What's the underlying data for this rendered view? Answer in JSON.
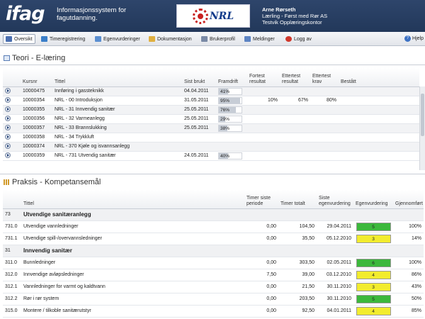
{
  "header": {
    "logo": "ifag",
    "tagline": "Informasjonssystem for fagutdanning.",
    "org_logo_text": "NRL",
    "user_name": "Arne Rørseth",
    "user_role": "Lærling - Først med Rør AS",
    "user_office": "Testvik Opplæringskontor"
  },
  "toolbar": {
    "tabs": [
      {
        "label": "Oversikt",
        "icon": "home-icon",
        "color": "#4a6fb0"
      },
      {
        "label": "Timeregistrering",
        "icon": "clock-icon",
        "color": "#3b7fc9"
      },
      {
        "label": "Egenvurderinger",
        "icon": "chart-icon",
        "color": "#5b8fd1"
      },
      {
        "label": "Dokumentasjon",
        "icon": "folder-icon",
        "color": "#e0b040"
      },
      {
        "label": "Brukerprofil",
        "icon": "profile-icon",
        "color": "#7a8aa6"
      },
      {
        "label": "Meldinger",
        "icon": "mail-icon",
        "color": "#5d84c4"
      },
      {
        "label": "Logg av",
        "icon": "logout-icon",
        "color": "#d0382c"
      }
    ],
    "help": "Hjelp"
  },
  "teori": {
    "title": "Teori - E-læring",
    "columns": [
      "Kursnr",
      "Tittel",
      "Sist brukt",
      "Framdrift",
      "Fortest resultat",
      "Ettertest resultat",
      "Ettertest krav",
      "Bestått"
    ],
    "rows": [
      {
        "kursnr": "10000475",
        "tittel": "Innføring i gassteknikk",
        "sist": "04.04.2011",
        "framdrift": "41%",
        "pct": 0.41,
        "fortest": "",
        "etter": "",
        "krav": "",
        "bestatt": ""
      },
      {
        "kursnr": "10000354",
        "tittel": "NRL - 00 Introduksjon",
        "sist": "31.05.2011",
        "framdrift": "95%",
        "pct": 0.95,
        "fortest": "10%",
        "etter": "67%",
        "krav": "80%",
        "bestatt": ""
      },
      {
        "kursnr": "10000355",
        "tittel": "NRL - 31 Innvendig sanitær",
        "sist": "25.05.2011",
        "framdrift": "76%",
        "pct": 0.76,
        "fortest": "",
        "etter": "",
        "krav": "",
        "bestatt": ""
      },
      {
        "kursnr": "10000356",
        "tittel": "NRL - 32 Varmeanlegg",
        "sist": "25.05.2011",
        "framdrift": "29%",
        "pct": 0.29,
        "fortest": "",
        "etter": "",
        "krav": "",
        "bestatt": ""
      },
      {
        "kursnr": "10000357",
        "tittel": "NRL - 33 Brannslukking",
        "sist": "25.05.2011",
        "framdrift": "38%",
        "pct": 0.38,
        "fortest": "",
        "etter": "",
        "krav": "",
        "bestatt": ""
      },
      {
        "kursnr": "10000358",
        "tittel": "NRL - 34 Trykkluft",
        "sist": "",
        "framdrift": "",
        "pct": 0,
        "fortest": "",
        "etter": "",
        "krav": "",
        "bestatt": ""
      },
      {
        "kursnr": "10000374",
        "tittel": "NRL - 370 Kjøle og isvannsanlegg",
        "sist": "",
        "framdrift": "",
        "pct": 0,
        "fortest": "",
        "etter": "",
        "krav": "",
        "bestatt": ""
      },
      {
        "kursnr": "10000359",
        "tittel": "NRL - 731 Utvendig sanitær",
        "sist": "24.05.2011",
        "framdrift": "40%",
        "pct": 0.4,
        "fortest": "",
        "etter": "",
        "krav": "",
        "bestatt": ""
      }
    ]
  },
  "praksis": {
    "title": "Praksis - Kompetansemål",
    "columns": [
      "",
      "Tittel",
      "Timer siste periode",
      "Timer totalt",
      "Siste egenvurdering",
      "Egenvurdering",
      "Gjennomført"
    ],
    "rows": [
      {
        "type": "group",
        "code": "73",
        "tittel": "Utvendige sanitæranlegg"
      },
      {
        "type": "item",
        "code": "731.0",
        "tittel": "Utvendige vannledninger",
        "siste": "0,00",
        "totalt": "104,50",
        "dato": "29.04.2011",
        "vurdering": "5",
        "color": "#3cb83c",
        "gjennom": "100%"
      },
      {
        "type": "item",
        "code": "731.1",
        "tittel": "Utvendige spill-/overvannsledninger",
        "siste": "0,00",
        "totalt": "35,50",
        "dato": "05.12.2010",
        "vurdering": "3",
        "color": "#f2ec2e",
        "gjennom": "14%"
      },
      {
        "type": "group",
        "code": "31",
        "tittel": "Innvendig sanitær"
      },
      {
        "type": "item",
        "code": "311.0",
        "tittel": "Bunnledninger",
        "siste": "0,00",
        "totalt": "303,50",
        "dato": "02.05.2011",
        "vurdering": "6",
        "color": "#3cb83c",
        "gjennom": "100%"
      },
      {
        "type": "item",
        "code": "312.0",
        "tittel": "Innvendige avløpsledninger",
        "siste": "7,50",
        "totalt": "39,00",
        "dato": "03.12.2010",
        "vurdering": "4",
        "color": "#f2ec2e",
        "gjennom": "86%"
      },
      {
        "type": "item",
        "code": "312.1",
        "tittel": "Vannledninger for varmt og kaldtvann",
        "siste": "0,00",
        "totalt": "21,50",
        "dato": "30.11.2010",
        "vurdering": "3",
        "color": "#f2ec2e",
        "gjennom": "43%"
      },
      {
        "type": "item",
        "code": "312.2",
        "tittel": "Rør i rør system",
        "siste": "0,00",
        "totalt": "203,50",
        "dato": "30.11.2010",
        "vurdering": "5",
        "color": "#3cb83c",
        "gjennom": "50%"
      },
      {
        "type": "item",
        "code": "315.0",
        "tittel": "Montere / tilkoble sanitærutstyr",
        "siste": "0,00",
        "totalt": "92,50",
        "dato": "04.01.2011",
        "vurdering": "4",
        "color": "#f2ec2e",
        "gjennom": "85%"
      }
    ]
  }
}
